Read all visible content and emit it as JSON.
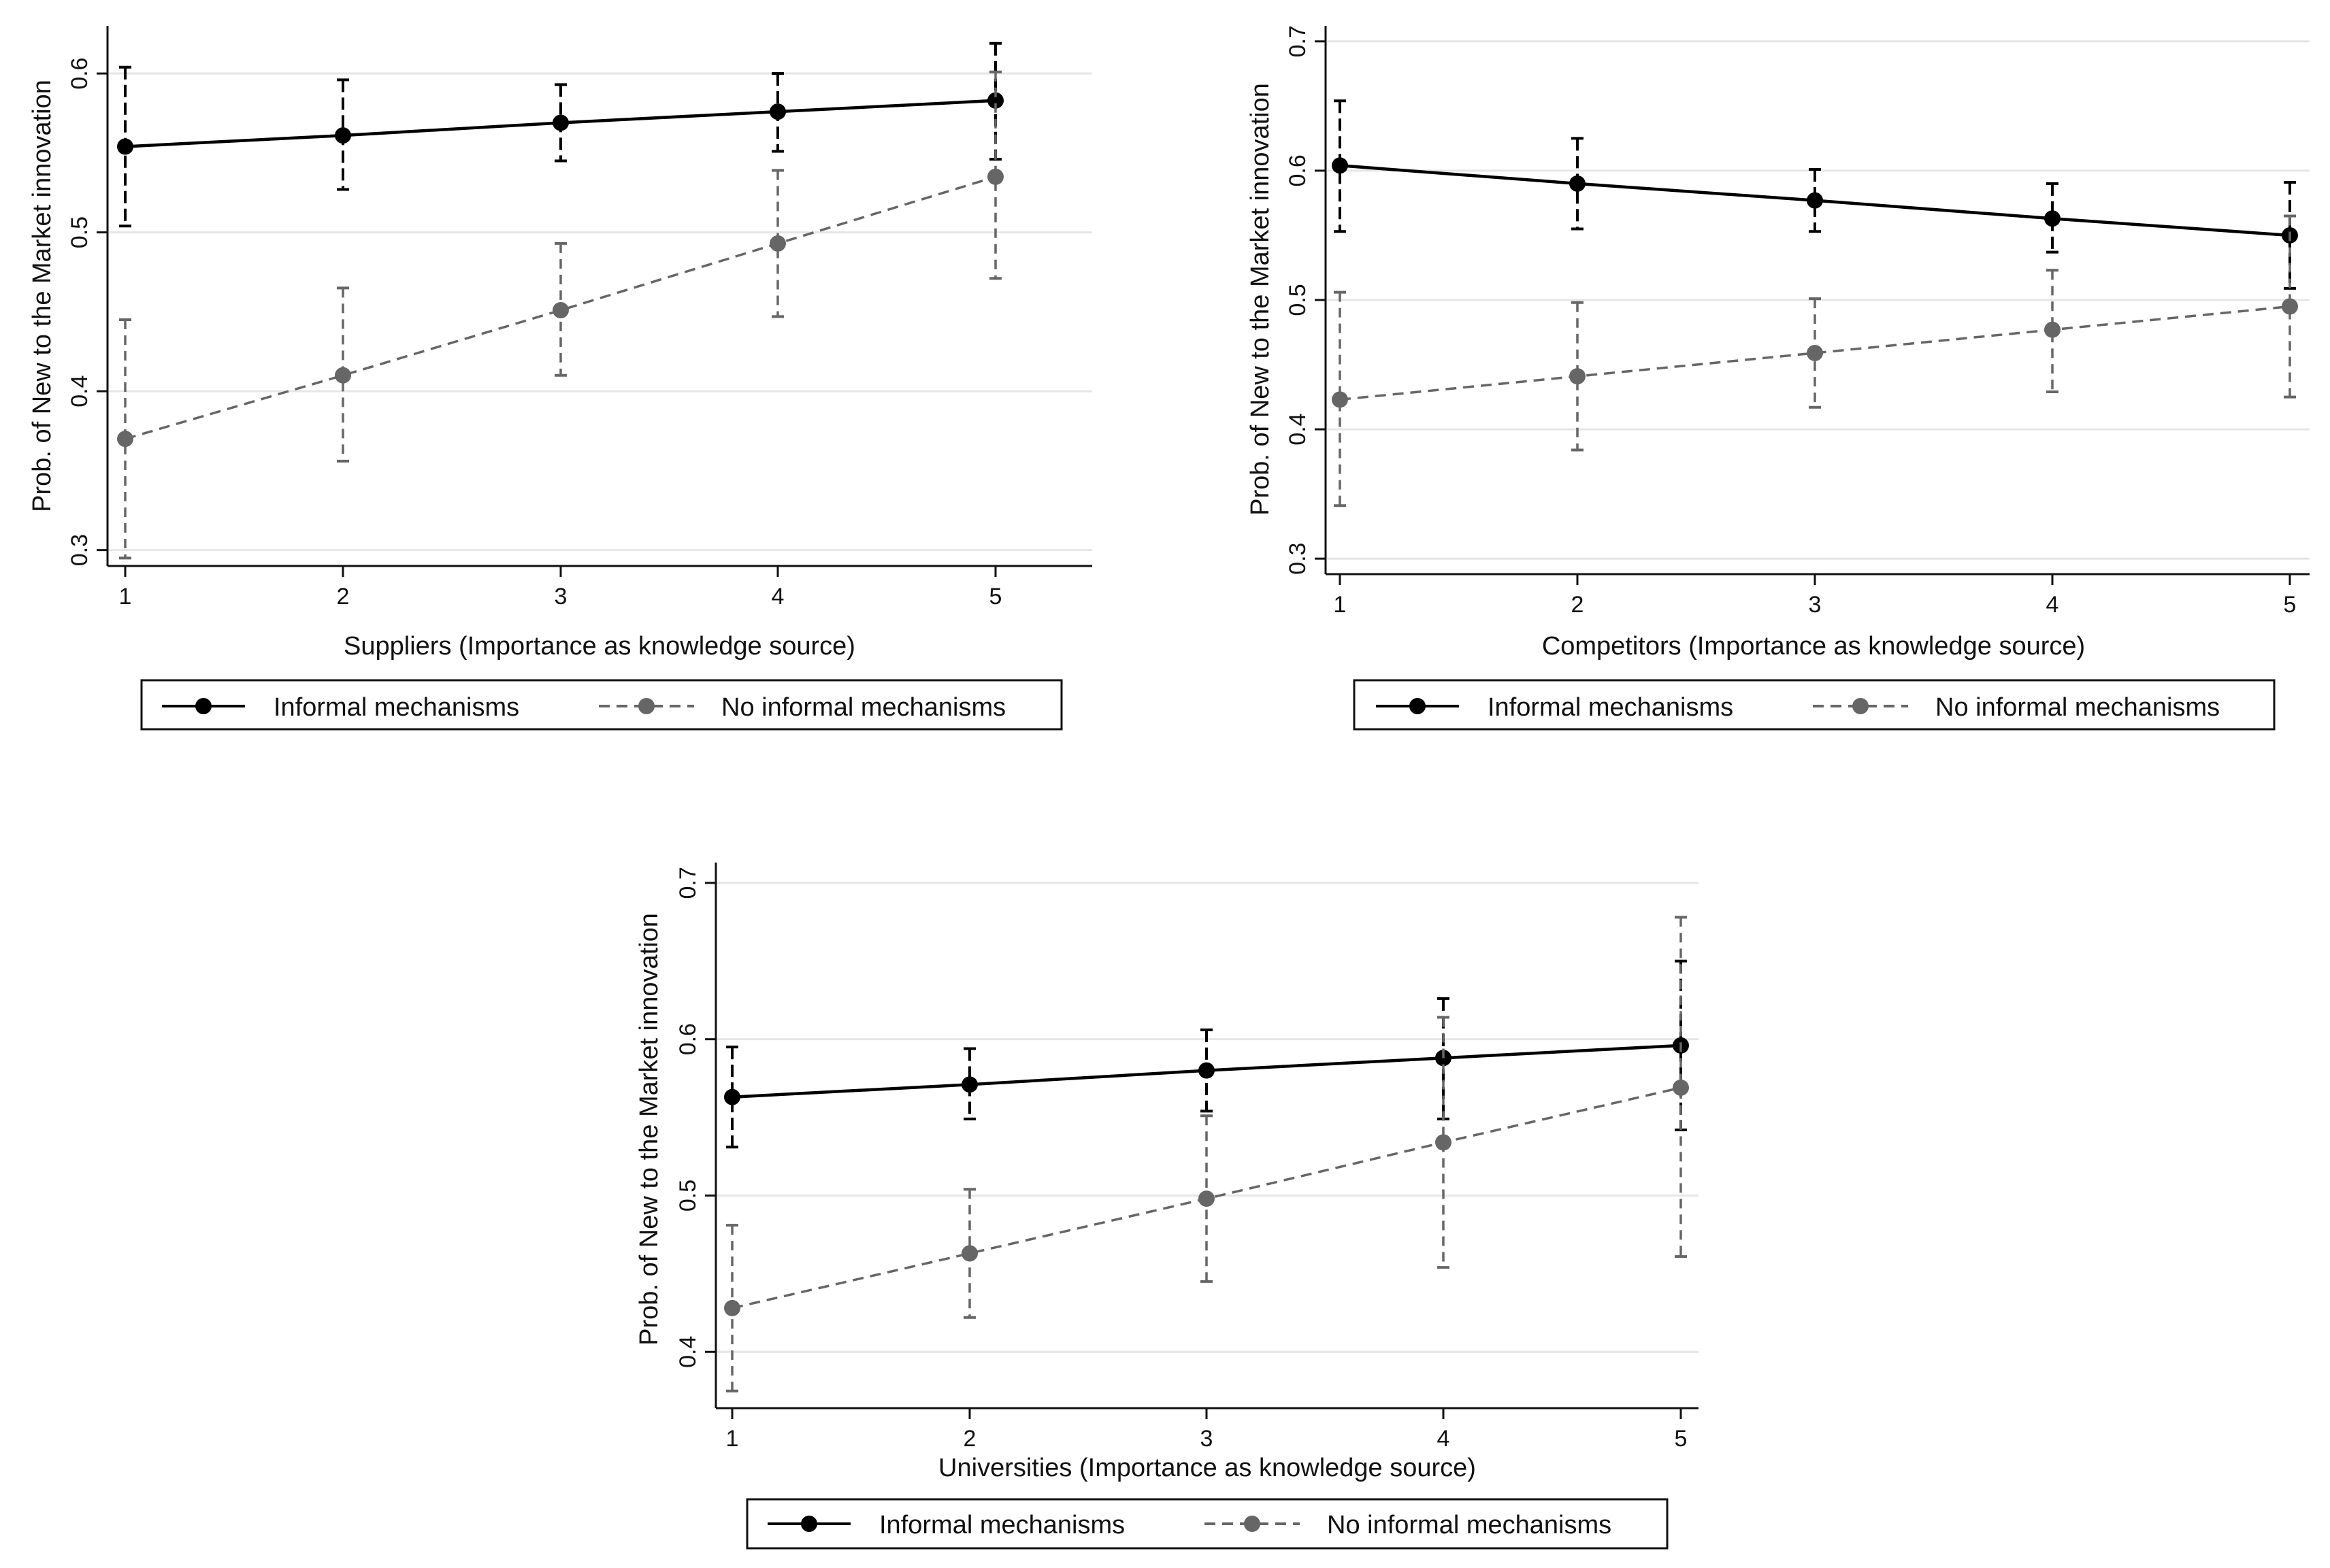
{
  "chart_data": [
    {
      "type": "line",
      "title": "",
      "xlabel": "Suppliers (Importance as knowledge source)",
      "ylabel": "Prob. of New to the Market innovation",
      "x": [
        1,
        2,
        3,
        4,
        5
      ],
      "x_ticks": [
        "1",
        "2",
        "3",
        "4",
        "5"
      ],
      "xlim": [
        0.99,
        5.1
      ],
      "ylim": [
        0.29,
        0.63
      ],
      "y_ticks": [
        "0.3",
        "0.4",
        "0.5",
        "0.6"
      ],
      "grid": true,
      "legend_position": "bottom",
      "series": [
        {
          "name": "Informal mechanisms",
          "style": "solid",
          "color": "#000000",
          "values": [
            0.554,
            0.561,
            0.569,
            0.576,
            0.583
          ],
          "ci_low": [
            0.504,
            0.527,
            0.545,
            0.551,
            0.546
          ],
          "ci_high": [
            0.604,
            0.596,
            0.593,
            0.6,
            0.619
          ]
        },
        {
          "name": "No informal mechanisms",
          "style": "dashed",
          "color": "#666666",
          "values": [
            0.37,
            0.41,
            0.451,
            0.493,
            0.535
          ],
          "ci_low": [
            0.295,
            0.356,
            0.41,
            0.447,
            0.471
          ],
          "ci_high": [
            0.445,
            0.465,
            0.493,
            0.539,
            0.601
          ]
        }
      ]
    },
    {
      "type": "line",
      "title": "",
      "xlabel": "Competitors (Importance as knowledge source)",
      "ylabel": "Prob. of New to the Market innovation",
      "x": [
        1,
        2,
        3,
        4,
        5
      ],
      "x_ticks": [
        "1",
        "2",
        "3",
        "4",
        "5"
      ],
      "xlim": [
        0.99,
        5.07
      ],
      "ylim": [
        0.288,
        0.712
      ],
      "y_ticks": [
        "0.3",
        "0.4",
        "0.5",
        "0.6",
        "0.7"
      ],
      "grid": true,
      "legend_position": "bottom",
      "series": [
        {
          "name": "Informal mechanisms",
          "style": "solid",
          "color": "#000000",
          "values": [
            0.604,
            0.59,
            0.577,
            0.563,
            0.55
          ],
          "ci_low": [
            0.553,
            0.555,
            0.553,
            0.537,
            0.509
          ],
          "ci_high": [
            0.654,
            0.625,
            0.601,
            0.59,
            0.591
          ]
        },
        {
          "name": "No informal mechanisms",
          "style": "dashed",
          "color": "#666666",
          "values": [
            0.423,
            0.441,
            0.459,
            0.477,
            0.495
          ],
          "ci_low": [
            0.341,
            0.384,
            0.417,
            0.429,
            0.425
          ],
          "ci_high": [
            0.506,
            0.498,
            0.501,
            0.523,
            0.565
          ]
        }
      ]
    },
    {
      "type": "line",
      "title": "",
      "xlabel": "Universities (Importance as knowledge source)",
      "ylabel": "Prob. of New to the Market innovation",
      "x": [
        1,
        2,
        3,
        4,
        5
      ],
      "x_ticks": [
        "1",
        "2",
        "3",
        "4",
        "5"
      ],
      "xlim": [
        0.99,
        5.07
      ],
      "ylim": [
        0.364,
        0.713
      ],
      "y_ticks": [
        "0.4",
        "0.5",
        "0.6",
        "0.7"
      ],
      "grid": true,
      "legend_position": "bottom",
      "series": [
        {
          "name": "Informal mechanisms",
          "style": "solid",
          "color": "#000000",
          "values": [
            0.563,
            0.571,
            0.58,
            0.588,
            0.596
          ],
          "ci_low": [
            0.531,
            0.549,
            0.554,
            0.549,
            0.542
          ],
          "ci_high": [
            0.595,
            0.594,
            0.606,
            0.626,
            0.65
          ]
        },
        {
          "name": "No informal mechanisms",
          "style": "dashed",
          "color": "#666666",
          "values": [
            0.428,
            0.463,
            0.498,
            0.534,
            0.569
          ],
          "ci_low": [
            0.375,
            0.422,
            0.445,
            0.454,
            0.461
          ],
          "ci_high": [
            0.481,
            0.504,
            0.551,
            0.614,
            0.678
          ]
        }
      ]
    }
  ]
}
